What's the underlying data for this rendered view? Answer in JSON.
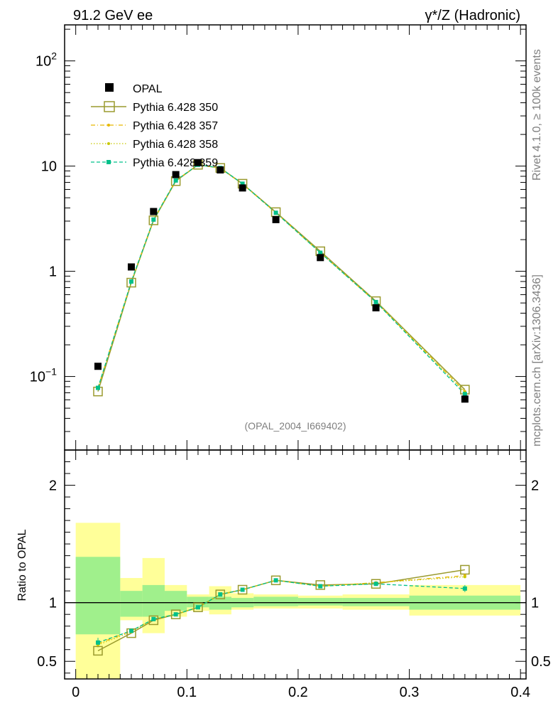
{
  "header": {
    "left": "91.2 GeV ee",
    "right": "γ*/Z (Hadronic)"
  },
  "side_labels": {
    "top": "Rivet 4.1.0, ≥ 100k events",
    "bottom": "mcplots.cern.ch [arXiv:1306.3436]"
  },
  "analysis_id": "(OPAL_2004_I669402)",
  "colors": {
    "opal": "#000000",
    "p350": "#9a9a2e",
    "p357": "#e6b800",
    "p358": "#c8c800",
    "p359": "#00c08a",
    "band_inner": "#a0f08c",
    "band_outer": "#ffff99"
  },
  "chart_data": [
    {
      "type": "line",
      "title": "91.2 GeV ee",
      "scale": "log",
      "ylim": [
        0.02,
        220
      ],
      "xlim": [
        -0.01,
        0.405
      ],
      "y_ticks": [
        {
          "value": 0.1,
          "base": "10",
          "exp": "−1"
        },
        {
          "value": 1,
          "base": "1",
          "exp": ""
        },
        {
          "value": 10,
          "base": "10",
          "exp": ""
        },
        {
          "value": 100,
          "base": "10",
          "exp": "2"
        }
      ],
      "legend": [
        "OPAL",
        "Pythia 6.428 350",
        "Pythia 6.428 357",
        "Pythia 6.428 358",
        "Pythia 6.428 359"
      ],
      "x": [
        0.02,
        0.05,
        0.07,
        0.09,
        0.11,
        0.13,
        0.15,
        0.18,
        0.22,
        0.27,
        0.35
      ],
      "series": [
        {
          "name": "OPAL",
          "values": [
            0.125,
            1.1,
            3.7,
            8.3,
            10.8,
            9.2,
            6.2,
            3.1,
            1.35,
            0.45,
            0.061
          ]
        },
        {
          "name": "Pythia 6.428 350",
          "values": [
            0.072,
            0.78,
            3.05,
            7.2,
            10.3,
            9.6,
            6.8,
            3.65,
            1.55,
            0.52,
            0.075
          ]
        },
        {
          "name": "Pythia 6.428 357",
          "values": [
            0.078,
            0.8,
            3.1,
            7.3,
            10.3,
            9.55,
            6.75,
            3.6,
            1.5,
            0.51,
            0.072
          ]
        },
        {
          "name": "Pythia 6.428 358",
          "values": [
            0.077,
            0.79,
            3.1,
            7.25,
            10.3,
            9.55,
            6.75,
            3.6,
            1.5,
            0.51,
            0.071
          ]
        },
        {
          "name": "Pythia 6.428 359",
          "values": [
            0.078,
            0.8,
            3.1,
            7.3,
            10.3,
            9.6,
            6.8,
            3.6,
            1.5,
            0.51,
            0.068
          ]
        }
      ]
    },
    {
      "type": "line",
      "ylabel": "Ratio to OPAL",
      "ylim": [
        0.35,
        2.3
      ],
      "xlim": [
        -0.01,
        0.405
      ],
      "x_ticks": [
        "0",
        "0.1",
        "0.2",
        "0.3",
        "0.4"
      ],
      "x_tick_values": [
        0,
        0.1,
        0.2,
        0.3,
        0.4
      ],
      "y_ticks": [
        "0.5",
        "1",
        "2"
      ],
      "y_tick_values": [
        0.5,
        1,
        2
      ],
      "bins": [
        [
          0,
          0.04
        ],
        [
          0.04,
          0.06
        ],
        [
          0.06,
          0.08
        ],
        [
          0.08,
          0.1
        ],
        [
          0.1,
          0.12
        ],
        [
          0.12,
          0.14
        ],
        [
          0.14,
          0.16
        ],
        [
          0.16,
          0.2
        ],
        [
          0.2,
          0.24
        ],
        [
          0.24,
          0.3
        ],
        [
          0.3,
          0.4
        ]
      ],
      "band_inner": [
        [
          0.73,
          1.39
        ],
        [
          0.88,
          1.1
        ],
        [
          0.88,
          1.15
        ],
        [
          0.93,
          1.1
        ],
        [
          0.96,
          1.05
        ],
        [
          0.94,
          1.05
        ],
        [
          0.96,
          1.04
        ],
        [
          0.97,
          1.05
        ],
        [
          0.975,
          1.04
        ],
        [
          0.97,
          1.04
        ],
        [
          0.94,
          1.06
        ]
      ],
      "band_outer": [
        [
          0.35,
          1.68
        ],
        [
          0.85,
          1.21
        ],
        [
          0.74,
          1.38
        ],
        [
          0.88,
          1.15
        ],
        [
          0.93,
          1.07
        ],
        [
          0.9,
          1.14
        ],
        [
          0.94,
          1.08
        ],
        [
          0.95,
          1.07
        ],
        [
          0.95,
          1.06
        ],
        [
          0.94,
          1.07
        ],
        [
          0.89,
          1.15
        ]
      ],
      "x": [
        0.02,
        0.05,
        0.07,
        0.09,
        0.11,
        0.13,
        0.15,
        0.18,
        0.22,
        0.27,
        0.35
      ],
      "series": [
        {
          "name": "Pythia 6.428 350",
          "values": [
            0.59,
            0.74,
            0.85,
            0.9,
            0.96,
            1.07,
            1.11,
            1.19,
            1.15,
            1.16,
            1.28
          ]
        },
        {
          "name": "Pythia 6.428 357",
          "values": [
            0.65,
            0.76,
            0.86,
            0.9,
            0.96,
            1.07,
            1.11,
            1.19,
            1.14,
            1.17,
            1.23
          ]
        },
        {
          "name": "Pythia 6.428 358",
          "values": [
            0.64,
            0.75,
            0.86,
            0.9,
            0.96,
            1.07,
            1.11,
            1.19,
            1.14,
            1.17,
            1.22
          ]
        },
        {
          "name": "Pythia 6.428 359",
          "values": [
            0.66,
            0.76,
            0.86,
            0.9,
            0.96,
            1.07,
            1.11,
            1.19,
            1.14,
            1.16,
            1.12
          ]
        }
      ]
    }
  ]
}
